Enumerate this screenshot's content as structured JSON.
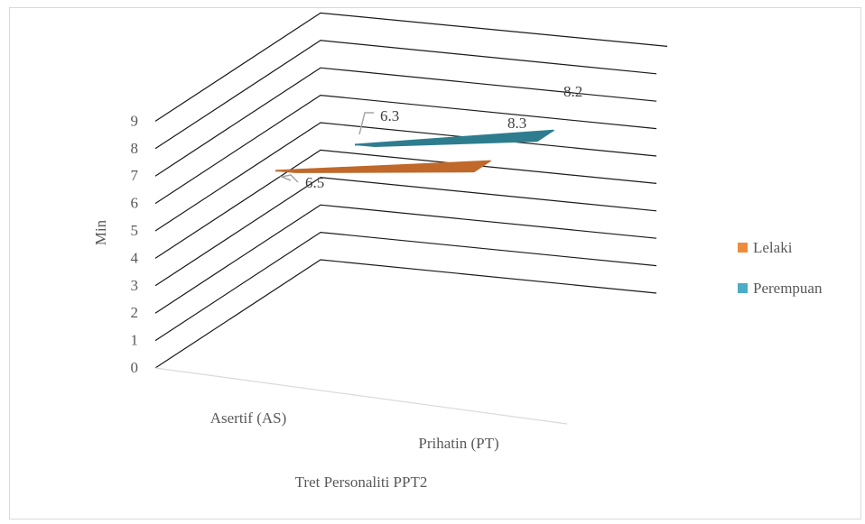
{
  "chart_data": {
    "type": "line",
    "style": "3d",
    "xlabel": "Tret Personaliti PPT2",
    "ylabel": "Min",
    "ylim": [
      0,
      9
    ],
    "yticks": [
      "0",
      "1",
      "2",
      "3",
      "4",
      "5",
      "6",
      "7",
      "8",
      "9"
    ],
    "categories": [
      "Asertif (AS)",
      "Prihatin (PT)"
    ],
    "series": [
      {
        "name": "Lelaki",
        "values": [
          6.5,
          8.3
        ],
        "labels": [
          "6.5",
          "8.3"
        ],
        "color": "#c0692a"
      },
      {
        "name": "Perempuan",
        "values": [
          6.3,
          8.2
        ],
        "labels": [
          "6.3",
          "8.2"
        ],
        "color": "#2e7d8f"
      }
    ],
    "legend_colors": [
      "#ed8c3a",
      "#4aacc6"
    ],
    "legend_position": "right",
    "grid": true
  }
}
